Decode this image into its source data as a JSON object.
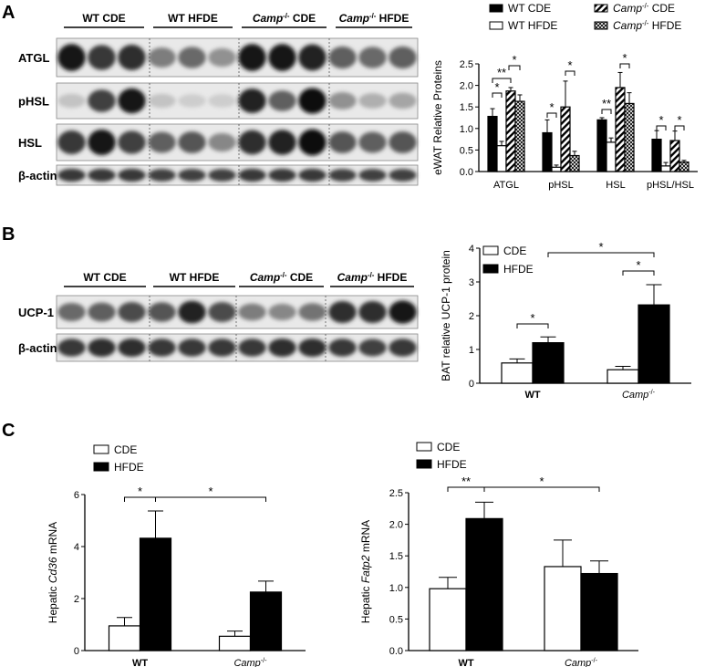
{
  "figure": {
    "panels": [
      {
        "letter": "A"
      },
      {
        "letter": "B"
      },
      {
        "letter": "C"
      }
    ]
  },
  "blots": {
    "A": {
      "groups": [
        "WT CDE",
        "WT HFDE",
        "Camp⁻/⁻ CDE",
        "Camp⁻/⁻ HFDE"
      ],
      "group_parts": [
        {
          "base": "WT CDE"
        },
        {
          "base": "WT HFDE"
        },
        {
          "italic": "Camp",
          "sup": "-/-",
          "rest": " CDE"
        },
        {
          "italic": "Camp",
          "sup": "-/-",
          "rest": " HFDE"
        }
      ],
      "rows": [
        "ATGL",
        "pHSL",
        "HSL",
        "β-actin"
      ]
    },
    "B": {
      "group_parts": [
        {
          "base": "WT CDE"
        },
        {
          "base": "WT HFDE"
        },
        {
          "italic": "Camp",
          "sup": "-/-",
          "rest": " CDE"
        },
        {
          "italic": "Camp",
          "sup": "-/-",
          "rest": " HFDE"
        }
      ],
      "rows": [
        "UCP-1",
        "β-actin"
      ]
    }
  },
  "chart_data": [
    {
      "id": "A-chart",
      "type": "bar",
      "ylabel": "eWAT Relative Proteins",
      "ylim": [
        0,
        2.5
      ],
      "yticks": [
        "0.0",
        "0.5",
        "1.0",
        "1.5",
        "2.0",
        "2.5"
      ],
      "categories": [
        "ATGL",
        "pHSL",
        "HSL",
        "pHSL/HSL"
      ],
      "series": [
        {
          "name": "WT CDE",
          "fill": "solid",
          "values": [
            1.28,
            0.9,
            1.2,
            0.75
          ],
          "errors": [
            0.18,
            0.3,
            0.05,
            0.2
          ]
        },
        {
          "name": "WT HFDE",
          "fill": "open",
          "values": [
            0.6,
            0.1,
            0.68,
            0.13
          ],
          "errors": [
            0.1,
            0.05,
            0.1,
            0.08
          ]
        },
        {
          "name_parts": {
            "italic": "Camp",
            "sup": "-/-",
            "rest": " CDE"
          },
          "name": "Camp-/- CDE",
          "fill": "hatch",
          "values": [
            1.87,
            1.5,
            1.95,
            0.72
          ],
          "errors": [
            0.08,
            0.6,
            0.35,
            0.22
          ]
        },
        {
          "name_parts": {
            "italic": "Camp",
            "sup": "-/-",
            "rest": " HFDE"
          },
          "name": "Camp-/- HFDE",
          "fill": "cross",
          "values": [
            1.63,
            0.37,
            1.58,
            0.22
          ],
          "errors": [
            0.15,
            0.1,
            0.25,
            0.04
          ]
        }
      ],
      "significance": [
        "*",
        "**",
        "*",
        "*",
        "*",
        "**",
        "*",
        "*",
        "*",
        "*"
      ]
    },
    {
      "id": "B-chart",
      "type": "bar",
      "ylabel": "BAT relative UCP-1 protein",
      "ylim": [
        0,
        4
      ],
      "yticks": [
        "0",
        "1",
        "2",
        "3",
        "4"
      ],
      "categories": [
        "WT",
        "Camp-/-"
      ],
      "category_parts": [
        {
          "base": "WT"
        },
        {
          "italic": "Camp",
          "sup": "-/-"
        }
      ],
      "series": [
        {
          "name": "CDE",
          "fill": "open",
          "values": [
            0.6,
            0.4
          ],
          "errors": [
            0.12,
            0.1
          ]
        },
        {
          "name": "HFDE",
          "fill": "solid",
          "values": [
            1.2,
            2.32
          ],
          "errors": [
            0.17,
            0.6
          ]
        }
      ],
      "significance": [
        "*",
        "*",
        "*"
      ]
    },
    {
      "id": "C1-chart",
      "type": "bar",
      "ylabel_parts": {
        "pre": "Hepatic ",
        "italic": "Cd36",
        "post": " mRNA"
      },
      "ylabel": "Hepatic Cd36 mRNA",
      "ylim": [
        0,
        6
      ],
      "yticks": [
        "0",
        "2",
        "4",
        "6"
      ],
      "categories": [
        "WT",
        "Camp-/-"
      ],
      "category_parts": [
        {
          "base": "WT"
        },
        {
          "italic": "Camp",
          "sup": "-/-"
        }
      ],
      "series": [
        {
          "name": "CDE",
          "fill": "open",
          "values": [
            0.95,
            0.55
          ],
          "errors": [
            0.32,
            0.2
          ]
        },
        {
          "name": "HFDE",
          "fill": "solid",
          "values": [
            4.32,
            2.25
          ],
          "errors": [
            1.05,
            0.42
          ]
        }
      ],
      "significance": [
        "*",
        "*"
      ]
    },
    {
      "id": "C2-chart",
      "type": "bar",
      "ylabel_parts": {
        "pre": "Hepatic ",
        "italic": "Fatp2",
        "post": " mRNA"
      },
      "ylabel": "Hepatic Fatp2 mRNA",
      "ylim": [
        0,
        2.5
      ],
      "yticks": [
        "0.0",
        "0.5",
        "1.0",
        "1.5",
        "2.0",
        "2.5"
      ],
      "categories": [
        "WT",
        "Camp-/-"
      ],
      "category_parts": [
        {
          "base": "WT"
        },
        {
          "italic": "Camp",
          "sup": "-/-"
        }
      ],
      "series": [
        {
          "name": "CDE",
          "fill": "open",
          "values": [
            0.98,
            1.33
          ],
          "errors": [
            0.18,
            0.42
          ]
        },
        {
          "name": "HFDE",
          "fill": "solid",
          "values": [
            2.09,
            1.22
          ],
          "errors": [
            0.26,
            0.2
          ]
        }
      ],
      "significance": [
        "**",
        "*"
      ]
    }
  ]
}
